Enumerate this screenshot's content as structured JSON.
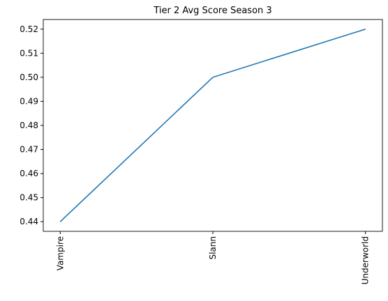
{
  "chart_data": {
    "type": "line",
    "title": "Tier 2 Avg Score Season 3",
    "categories": [
      "Vampire",
      "Slann",
      "Underworld"
    ],
    "values": [
      0.44,
      0.5,
      0.52
    ],
    "color": "#1f77b4",
    "ylim": [
      0.436,
      0.524
    ],
    "yticks": [
      0.44,
      0.45,
      0.46,
      0.47,
      0.48,
      0.49,
      {
        "value": 0.5,
        "label": "0.50"
      },
      0.51,
      0.52
    ],
    "grid": false
  }
}
